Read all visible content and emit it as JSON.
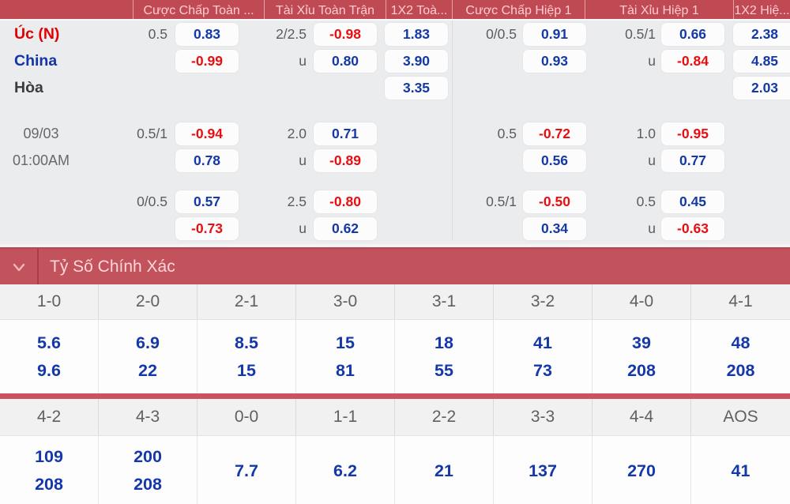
{
  "header": {
    "columns": [
      "Cược Chấp Toàn ...",
      "Tài Xỉu Toàn Trận",
      "1X2 Toà...",
      "Cược Chấp Hiệp 1",
      "Tài Xỉu Hiệp 1",
      "1X2 Hiệ..."
    ]
  },
  "match": {
    "home": "Úc (N)",
    "away": "China",
    "draw_label": "Hòa",
    "date": "09/03",
    "time": "01:00AM"
  },
  "odds": {
    "blocks": [
      {
        "hcap": {
          "rows": [
            {
              "line": "0.5",
              "odd": "0.83"
            },
            {
              "line": "",
              "odd": "-0.99"
            }
          ]
        },
        "ou": {
          "rows": [
            {
              "line": "2/2.5",
              "odd": "-0.98"
            },
            {
              "line": "u",
              "odd": "0.80"
            }
          ]
        },
        "x12": {
          "odds": [
            "1.83",
            "3.90",
            "3.35"
          ]
        },
        "h1_hcap": {
          "rows": [
            {
              "line": "0/0.5",
              "odd": "0.91"
            },
            {
              "line": "",
              "odd": "0.93"
            }
          ]
        },
        "h1_ou": {
          "rows": [
            {
              "line": "0.5/1",
              "odd": "0.66"
            },
            {
              "line": "u",
              "odd": "-0.84"
            }
          ]
        },
        "h1_x12": {
          "odds": [
            "2.38",
            "4.85",
            "2.03"
          ]
        }
      },
      {
        "hcap": {
          "rows": [
            {
              "line": "0.5/1",
              "odd": "-0.94"
            },
            {
              "line": "",
              "odd": "0.78"
            }
          ]
        },
        "ou": {
          "rows": [
            {
              "line": "2.0",
              "odd": "0.71"
            },
            {
              "line": "u",
              "odd": "-0.89"
            }
          ]
        },
        "h1_hcap": {
          "rows": [
            {
              "line": "0.5",
              "odd": "-0.72"
            },
            {
              "line": "",
              "odd": "0.56"
            }
          ]
        },
        "h1_ou": {
          "rows": [
            {
              "line": "1.0",
              "odd": "-0.95"
            },
            {
              "line": "u",
              "odd": "0.77"
            }
          ]
        }
      },
      {
        "hcap": {
          "rows": [
            {
              "line": "0/0.5",
              "odd": "0.57"
            },
            {
              "line": "",
              "odd": "-0.73"
            }
          ]
        },
        "ou": {
          "rows": [
            {
              "line": "2.5",
              "odd": "-0.80"
            },
            {
              "line": "u",
              "odd": "0.62"
            }
          ]
        },
        "h1_hcap": {
          "rows": [
            {
              "line": "0.5/1",
              "odd": "-0.50"
            },
            {
              "line": "",
              "odd": "0.34"
            }
          ]
        },
        "h1_ou": {
          "rows": [
            {
              "line": "0.5",
              "odd": "0.45"
            },
            {
              "line": "u",
              "odd": "-0.63"
            }
          ]
        }
      }
    ]
  },
  "score_section": {
    "title": "Tỷ Số Chính Xác",
    "tables": [
      {
        "headers": [
          "1-0",
          "2-0",
          "2-1",
          "3-0",
          "3-1",
          "3-2",
          "4-0",
          "4-1"
        ],
        "values": [
          [
            "5.6",
            "9.6"
          ],
          [
            "6.9",
            "22"
          ],
          [
            "8.5",
            "15"
          ],
          [
            "15",
            "81"
          ],
          [
            "18",
            "55"
          ],
          [
            "41",
            "73"
          ],
          [
            "39",
            "208"
          ],
          [
            "48",
            "208"
          ]
        ]
      },
      {
        "headers": [
          "4-2",
          "4-3",
          "0-0",
          "1-1",
          "2-2",
          "3-3",
          "4-4",
          "AOS"
        ],
        "values": [
          [
            "109",
            "208"
          ],
          [
            "200",
            "208"
          ],
          [
            "7.7"
          ],
          [
            "6.2"
          ],
          [
            "21"
          ],
          [
            "137"
          ],
          [
            "270"
          ],
          [
            "41"
          ]
        ]
      }
    ]
  },
  "colors": {
    "header_bar": "#c04a54",
    "header_text": "#ffccd1",
    "section_bar": "#c2525b",
    "section_text": "#ffd6d9",
    "odd_positive": "#1438a8",
    "odd_negative": "#ea0e10",
    "score_value": "#1438a8",
    "divider_bar": "#c9545c"
  }
}
